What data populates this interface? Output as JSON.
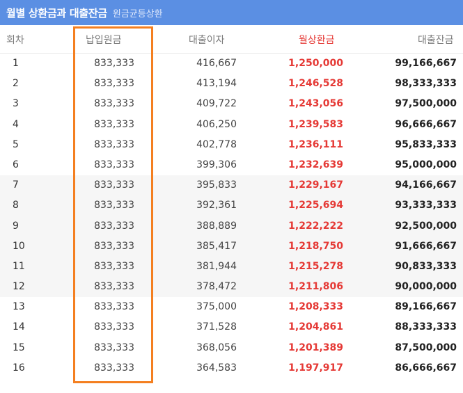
{
  "header": {
    "title": "월별 상환금과 대출잔금",
    "subtitle": "원금균등상환"
  },
  "columns": [
    "회차",
    "납입원금",
    "대출이자",
    "월상환금",
    "대출잔금"
  ],
  "colors": {
    "header_bg": "#5b8fe3",
    "highlight": "#f47f20",
    "payment_text": "#e53935"
  },
  "rows": [
    [
      "1",
      "833,333",
      "416,667",
      "1,250,000",
      "99,166,667"
    ],
    [
      "2",
      "833,333",
      "413,194",
      "1,246,528",
      "98,333,333"
    ],
    [
      "3",
      "833,333",
      "409,722",
      "1,243,056",
      "97,500,000"
    ],
    [
      "4",
      "833,333",
      "406,250",
      "1,239,583",
      "96,666,667"
    ],
    [
      "5",
      "833,333",
      "402,778",
      "1,236,111",
      "95,833,333"
    ],
    [
      "6",
      "833,333",
      "399,306",
      "1,232,639",
      "95,000,000"
    ],
    [
      "7",
      "833,333",
      "395,833",
      "1,229,167",
      "94,166,667"
    ],
    [
      "8",
      "833,333",
      "392,361",
      "1,225,694",
      "93,333,333"
    ],
    [
      "9",
      "833,333",
      "388,889",
      "1,222,222",
      "92,500,000"
    ],
    [
      "10",
      "833,333",
      "385,417",
      "1,218,750",
      "91,666,667"
    ],
    [
      "11",
      "833,333",
      "381,944",
      "1,215,278",
      "90,833,333"
    ],
    [
      "12",
      "833,333",
      "378,472",
      "1,211,806",
      "90,000,000"
    ],
    [
      "13",
      "833,333",
      "375,000",
      "1,208,333",
      "89,166,667"
    ],
    [
      "14",
      "833,333",
      "371,528",
      "1,204,861",
      "88,333,333"
    ],
    [
      "15",
      "833,333",
      "368,056",
      "1,201,389",
      "87,500,000"
    ],
    [
      "16",
      "833,333",
      "364,583",
      "1,197,917",
      "86,666,667"
    ]
  ]
}
